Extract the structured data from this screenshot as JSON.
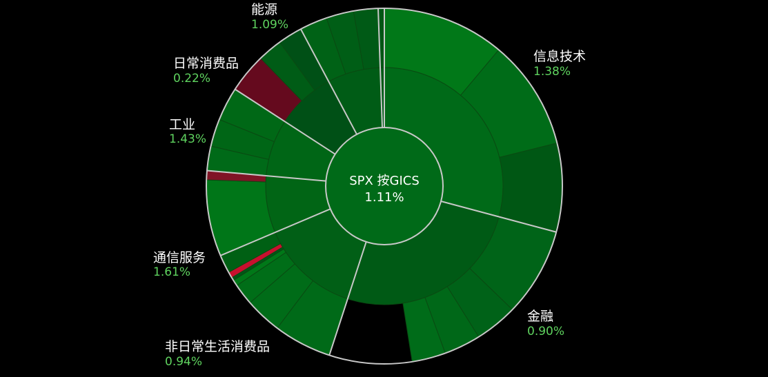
{
  "chart_data": {
    "type": "sunburst",
    "center": {
      "title": "SPX 按GICS",
      "change": "1.11%"
    },
    "sectors": [
      {
        "name": "信息技术",
        "change": "1.38%",
        "color": "#006a18",
        "leaves": [
          "#017818",
          "#006c18",
          "#005714"
        ]
      },
      {
        "name": "金融",
        "change": "0.90%",
        "color": "#005a15",
        "leaves": [
          "#006418",
          "#006218",
          "#006818",
          "#006c19"
        ]
      },
      {
        "name": "非日常生活消费品",
        "change": "0.94%",
        "color": "#015f16",
        "leaves": [
          "#006a18",
          "#006c18",
          "#006e18",
          "#007818",
          "#005616",
          "#c8102e",
          "#006014"
        ]
      },
      {
        "name": "通信服务",
        "change": "1.61%",
        "color": "#016515",
        "leaves": [
          "#007618",
          "#801426"
        ]
      },
      {
        "name": "工业",
        "change": "1.43%",
        "color": "#006616",
        "leaves": [
          "#006a18",
          "#006616",
          "#006816"
        ]
      },
      {
        "name": "日常消费品",
        "change": "0.22%",
        "color": "#005016",
        "leaves": [
          "#650a1e",
          "#005c16",
          "#005016"
        ]
      },
      {
        "name": "能源",
        "change": "1.09%",
        "color": "#005c16",
        "leaves": [
          "#006216",
          "#005e16",
          "#005a16",
          "#005014"
        ]
      },
      {
        "name": "",
        "change": "",
        "color": "#005a16",
        "leaves": [
          "#005614"
        ]
      }
    ]
  }
}
